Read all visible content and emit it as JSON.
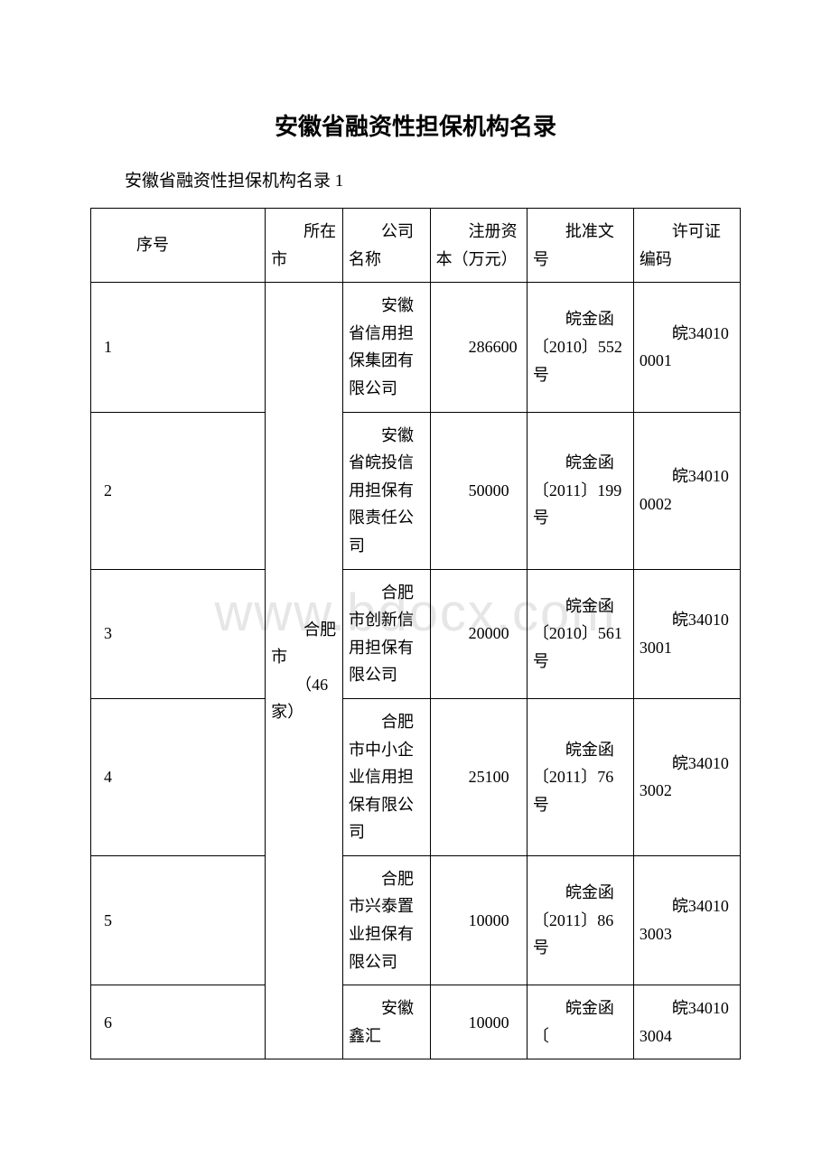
{
  "title": "安徽省融资性担保机构名录",
  "subtitle": "安徽省融资性担保机构名录 1",
  "watermark": "www.bdocx.com",
  "header": {
    "seq": "序号",
    "city": "所在市",
    "company": "公司名称",
    "capital": "注册资本（万元）",
    "approval": "批准文号",
    "license": "许可证编码"
  },
  "city_merged": "合肥市\n　　（46 家）",
  "rows": [
    {
      "seq": "1",
      "company": "安徽省信用担保集团有限公司",
      "capital": "286600",
      "approval": "皖金函〔2010〕552 号",
      "license": "皖340100001"
    },
    {
      "seq": "2",
      "company": "安徽省皖投信用担保有限责任公司",
      "capital": "50000",
      "approval": "皖金函〔2011〕199 号",
      "license": "皖340100002"
    },
    {
      "seq": "3",
      "company": "合肥市创新信用担保有限公司",
      "capital": "20000",
      "approval": "皖金函〔2010〕561 号",
      "license": "皖340103001"
    },
    {
      "seq": "4",
      "company": "合肥市中小企业信用担保有限公司",
      "capital": "25100",
      "approval": "皖金函〔2011〕76 号",
      "license": "皖340103002"
    },
    {
      "seq": "5",
      "company": "合肥市兴泰置业担保有限公司",
      "capital": "10000",
      "approval": "皖金函〔2011〕86 号",
      "license": "皖340103003"
    },
    {
      "seq": "6",
      "company": "安徽鑫汇",
      "capital": "10000",
      "approval": "皖金函〔",
      "license": "皖340103004"
    }
  ]
}
